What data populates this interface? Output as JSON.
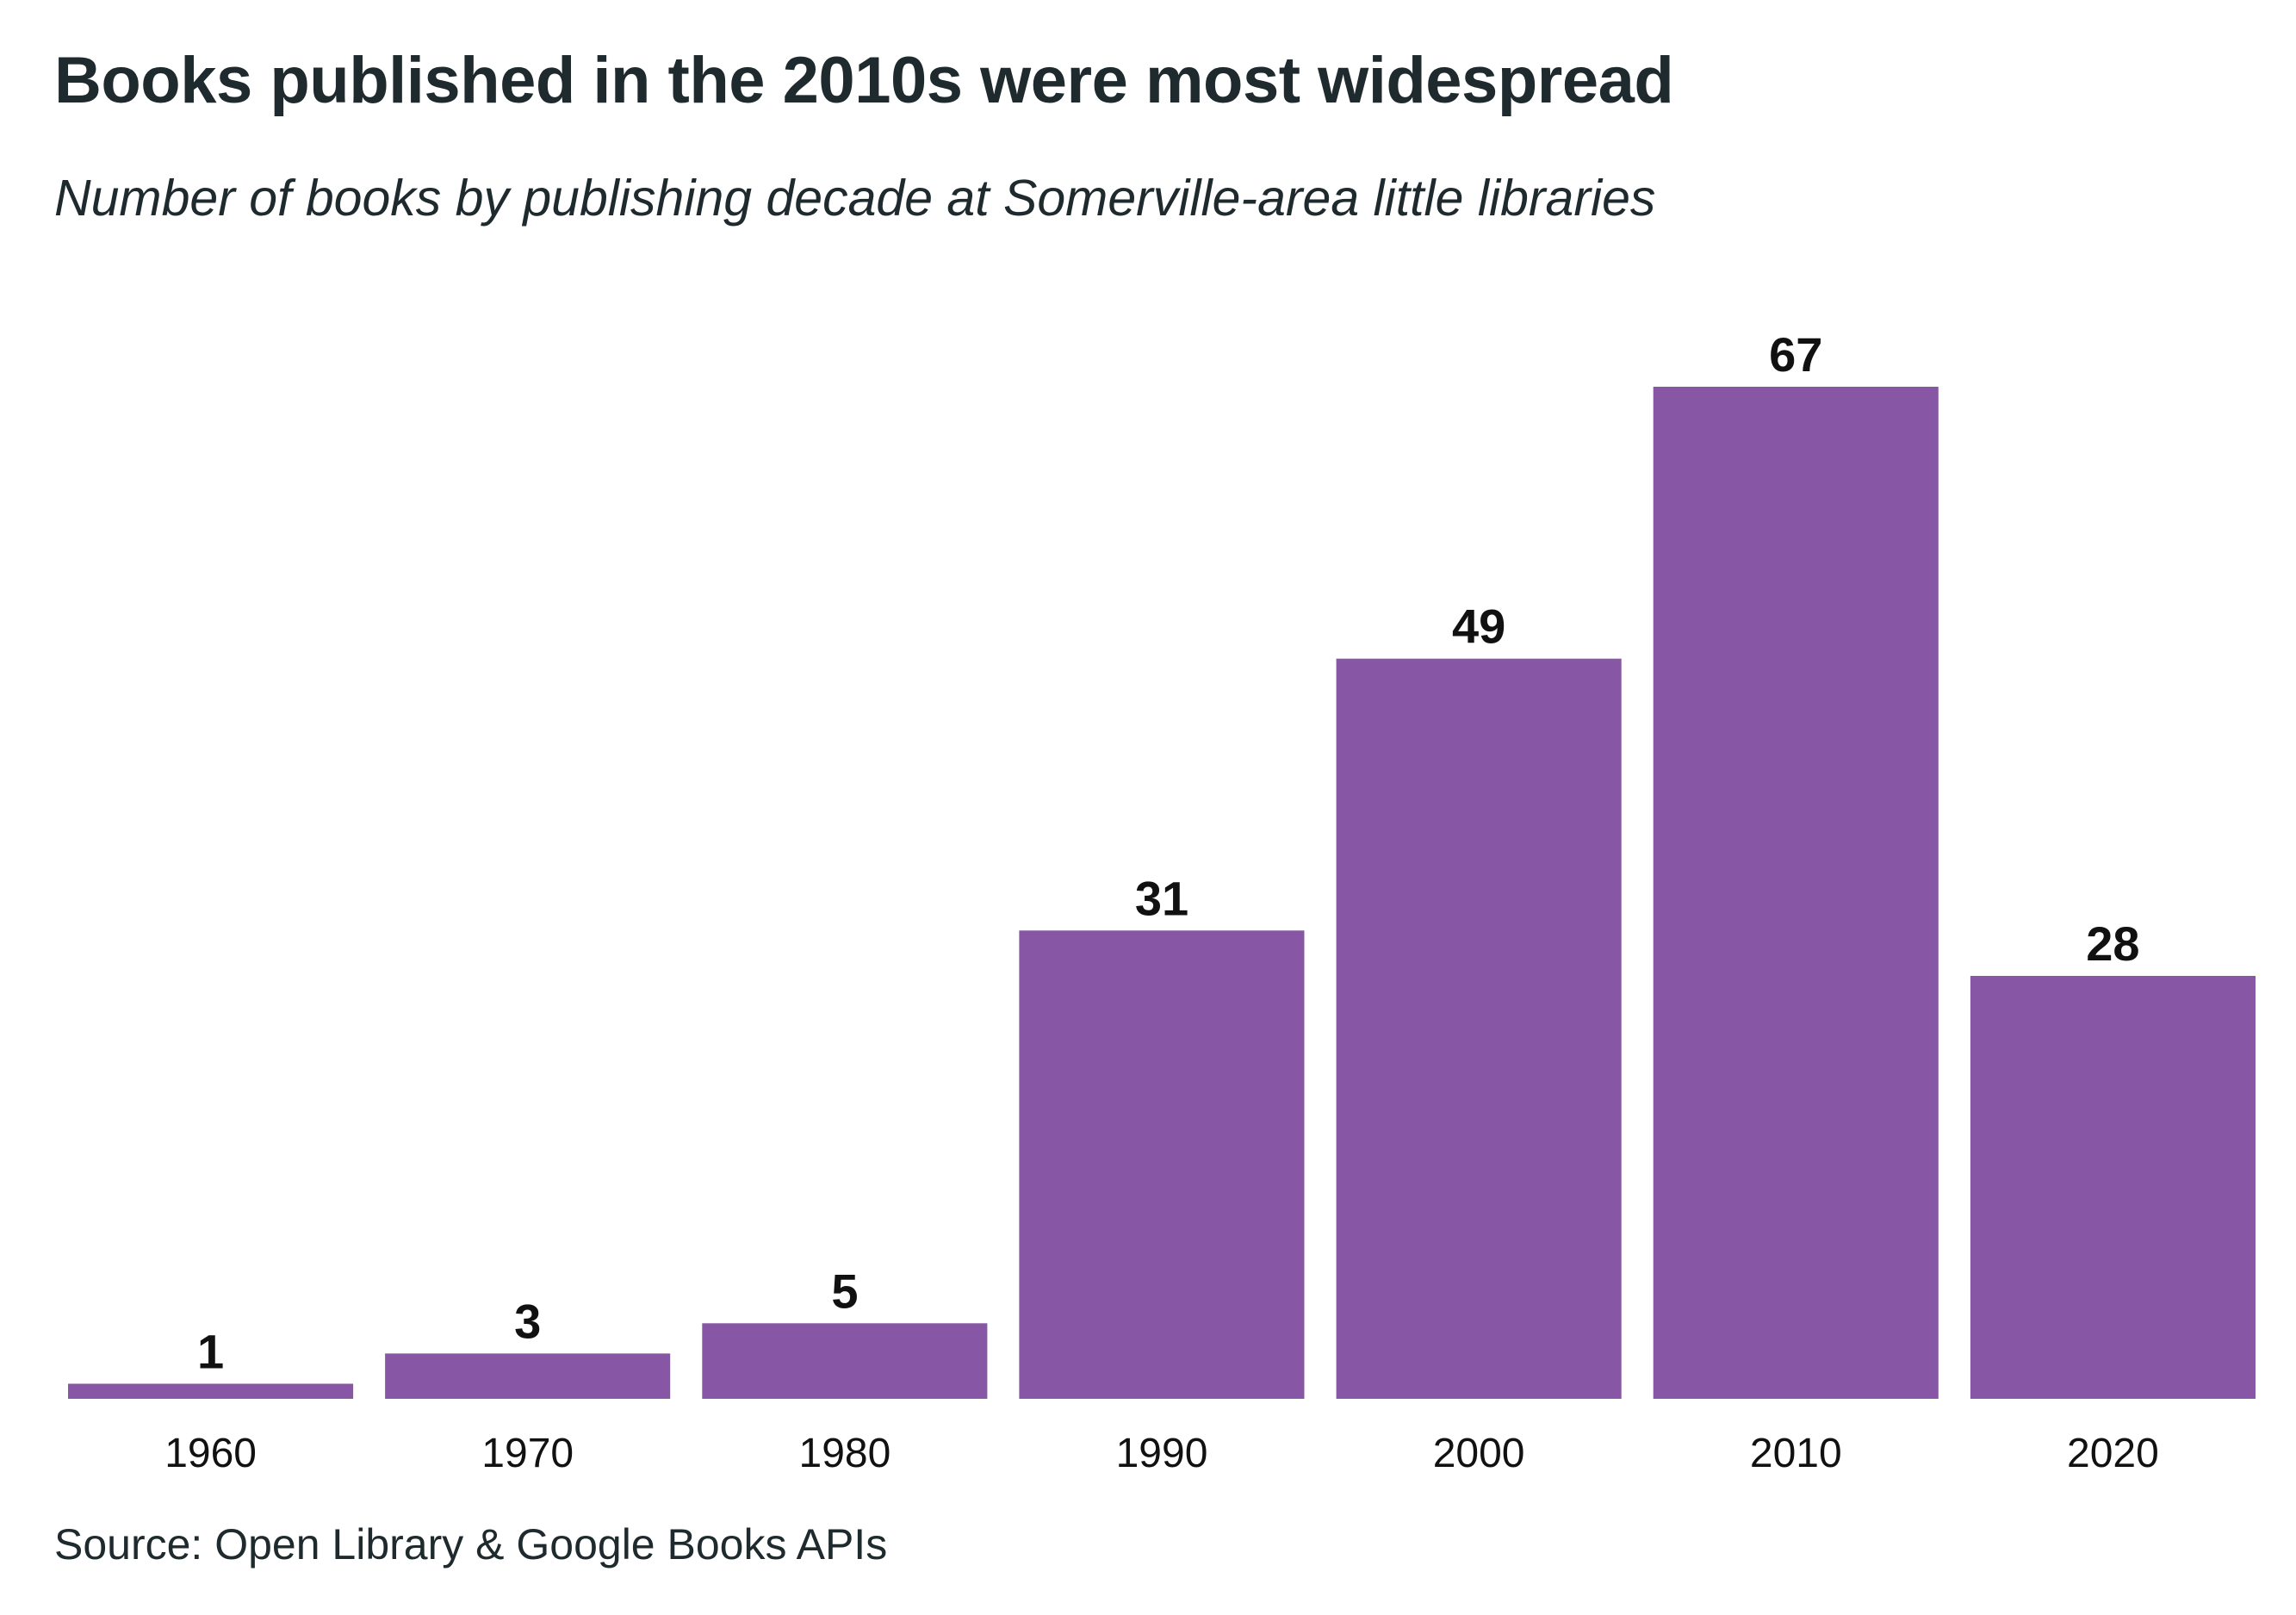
{
  "chart_data": {
    "type": "bar",
    "title": "Books published in the 2010s were most widespread",
    "subtitle": "Number of books by publishing decade at Somerville-area little libraries",
    "source": "Source: Open Library & Google Books APIs",
    "categories": [
      "1960",
      "1970",
      "1980",
      "1990",
      "2000",
      "2010",
      "2020"
    ],
    "values": [
      1,
      3,
      5,
      31,
      49,
      67,
      28
    ],
    "xlabel": "",
    "ylabel": "",
    "ylim": [
      0,
      67
    ],
    "grid": false,
    "legend": "none",
    "bar_color": "#8757a6",
    "data_labels": true
  }
}
